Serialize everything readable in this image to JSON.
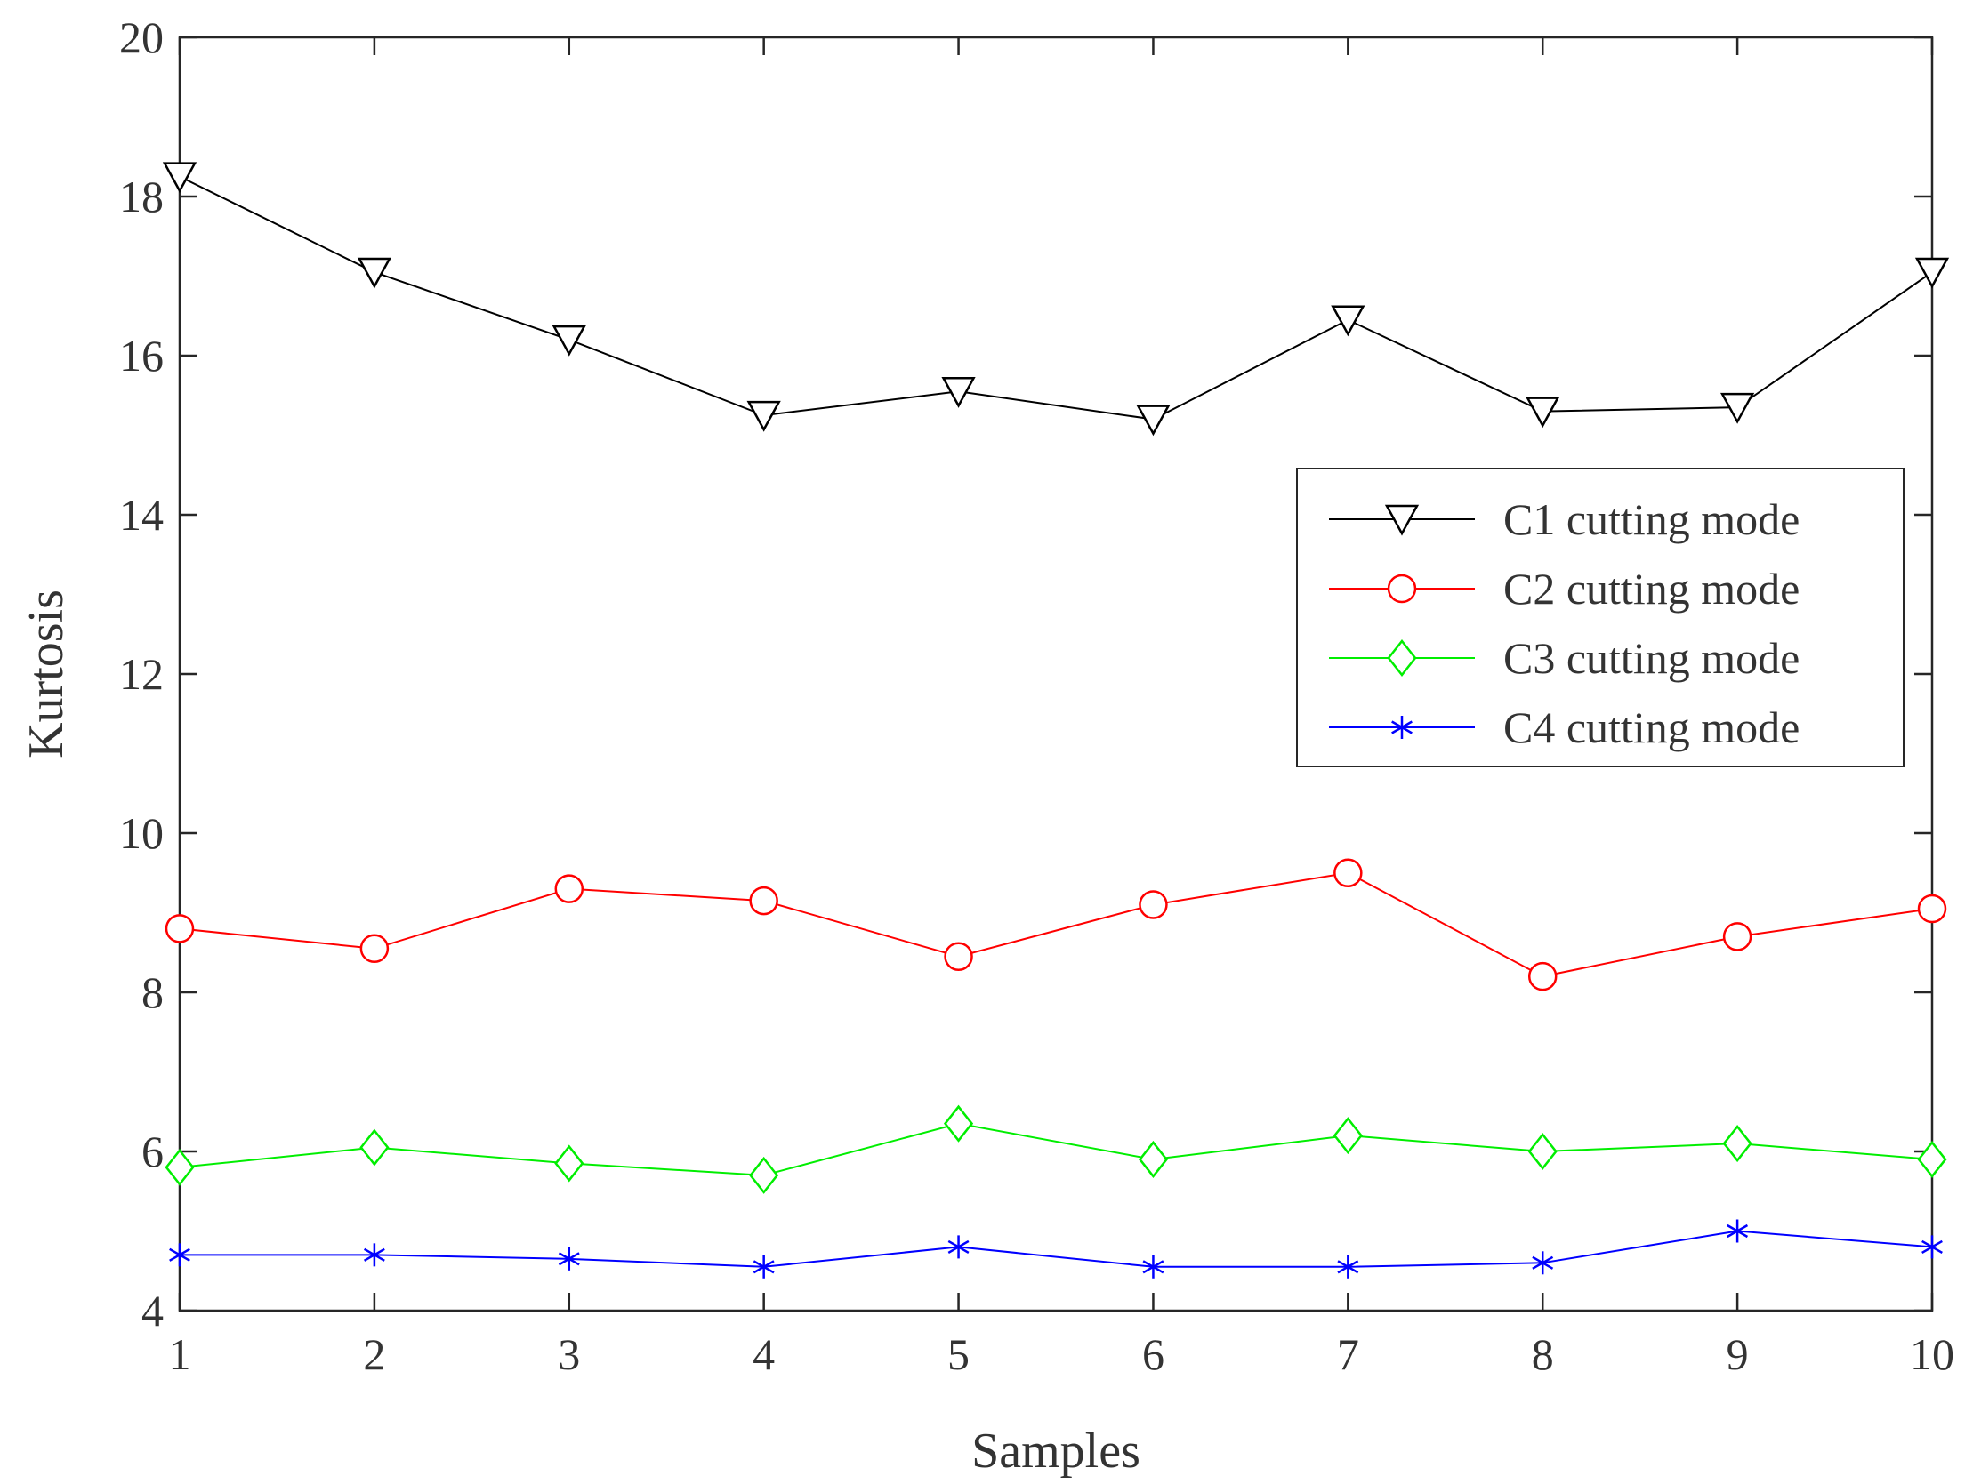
{
  "chart_data": {
    "type": "line",
    "title": "",
    "xlabel": "Samples",
    "ylabel": "Kurtosis",
    "x": [
      1,
      2,
      3,
      4,
      5,
      6,
      7,
      8,
      9,
      10
    ],
    "xlim": [
      1,
      10
    ],
    "ylim": [
      4,
      20
    ],
    "xticks": [
      "1",
      "2",
      "3",
      "4",
      "5",
      "6",
      "7",
      "8",
      "9",
      "10"
    ],
    "yticks": [
      "4",
      "6",
      "8",
      "10",
      "12",
      "14",
      "16",
      "18",
      "20"
    ],
    "grid": false,
    "legend_position": "right",
    "series": [
      {
        "name": "C1 cutting mode",
        "color": "#000000",
        "marker": "triangle-down",
        "values": [
          18.25,
          17.05,
          16.2,
          15.25,
          15.55,
          15.2,
          16.45,
          15.3,
          15.35,
          17.05
        ]
      },
      {
        "name": "C2 cutting mode",
        "color": "#ff0000",
        "marker": "circle",
        "values": [
          8.8,
          8.55,
          9.3,
          9.15,
          8.45,
          9.1,
          9.5,
          8.2,
          8.7,
          9.05
        ]
      },
      {
        "name": "C3 cutting mode",
        "color": "#00ee00",
        "marker": "diamond",
        "values": [
          5.8,
          6.05,
          5.85,
          5.7,
          6.35,
          5.9,
          6.2,
          6.0,
          6.1,
          5.9
        ]
      },
      {
        "name": "C4 cutting mode",
        "color": "#0000ff",
        "marker": "asterisk",
        "values": [
          4.7,
          4.7,
          4.65,
          4.55,
          4.8,
          4.55,
          4.55,
          4.6,
          5.0,
          4.8
        ]
      }
    ]
  }
}
